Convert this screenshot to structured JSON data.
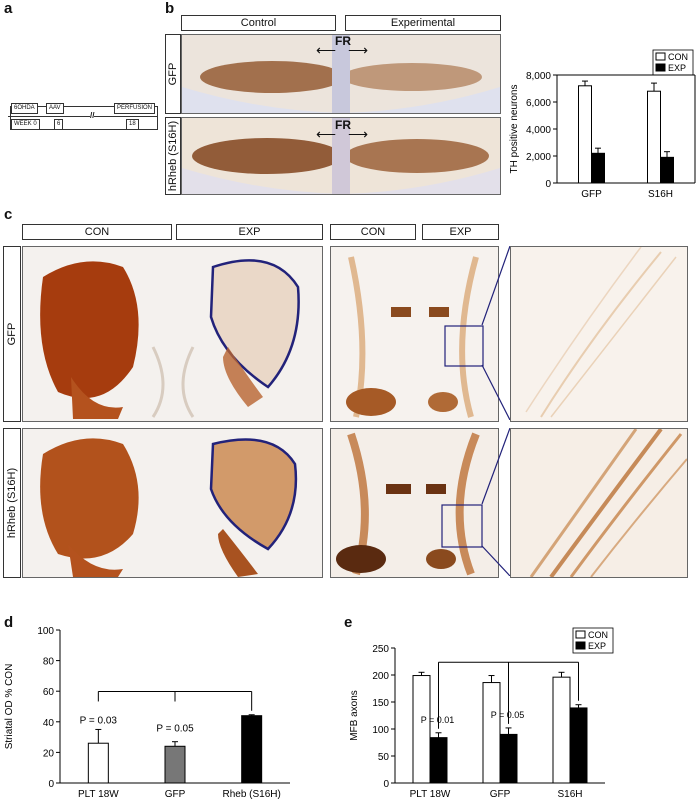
{
  "panel_a": {
    "letter": "a",
    "timeline": {
      "top": [
        "6OHDA",
        "AAV",
        "PERFUSION"
      ],
      "bottom": [
        "WEEK 0",
        "6",
        "18"
      ]
    }
  },
  "panel_b": {
    "letter": "b",
    "headers": [
      "Control",
      "Experimental"
    ],
    "rows": [
      "GFP",
      "hRheb (S16H)"
    ],
    "fr_label": "FR"
  },
  "panel_c": {
    "letter": "c",
    "headers_left": [
      "CON",
      "EXP"
    ],
    "headers_mid": [
      "CON",
      "EXP"
    ],
    "rows": [
      "GFP",
      "hRheb (S16H)"
    ]
  },
  "panel_d": {
    "letter": "d"
  },
  "panel_e": {
    "letter": "e"
  },
  "chart_data": [
    {
      "id": "b",
      "type": "bar",
      "categories": [
        "GFP",
        "S16H"
      ],
      "series": [
        {
          "name": "CON",
          "values": [
            7200,
            6800
          ],
          "errors": [
            350,
            600
          ],
          "color": "#ffffff"
        },
        {
          "name": "EXP",
          "values": [
            2200,
            1900
          ],
          "errors": [
            380,
            420
          ],
          "color": "#000000"
        }
      ],
      "ylabel": "TH positive neurons",
      "ylim": [
        0,
        8000
      ],
      "yticks": [
        "0",
        "2,000",
        "4,000",
        "6,000",
        "8,000"
      ],
      "legend": "top-right"
    },
    {
      "id": "d",
      "type": "bar",
      "categories": [
        "PLT 18W",
        "GFP",
        "Rheb (S16H)"
      ],
      "series": [
        {
          "values": [
            26,
            24,
            44
          ],
          "errors": [
            9,
            3,
            0.6
          ],
          "colors": [
            "#ffffff",
            "#777777",
            "#000000"
          ]
        }
      ],
      "ylabel": "Striatal OD % CON",
      "ylim": [
        0,
        100
      ],
      "yticks": [
        "0",
        "20",
        "40",
        "60",
        "80",
        "100"
      ],
      "annotations": [
        "P = 0.03",
        "P = 0.05"
      ]
    },
    {
      "id": "e",
      "type": "bar",
      "categories": [
        "PLT 18W",
        "GFP",
        "S16H"
      ],
      "series": [
        {
          "name": "CON",
          "values": [
            199,
            186,
            196
          ],
          "errors": [
            6,
            13,
            9
          ],
          "color": "#ffffff"
        },
        {
          "name": "EXP",
          "values": [
            84,
            90,
            139
          ],
          "errors": [
            9,
            12,
            6
          ],
          "color": "#000000"
        }
      ],
      "ylabel": "MFB axons",
      "ylim": [
        0,
        250
      ],
      "yticks": [
        "0",
        "50",
        "100",
        "150",
        "200",
        "250"
      ],
      "annotations": [
        "P = 0.01",
        "P = 0.05"
      ],
      "legend": "top-right"
    }
  ]
}
